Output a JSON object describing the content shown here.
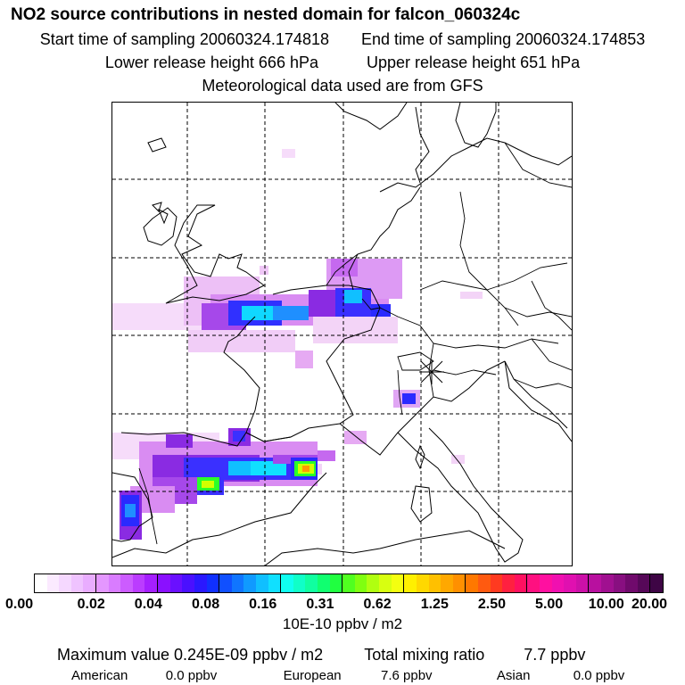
{
  "header": {
    "title": "NO2 source contributions in nested domain for falcon_060324c",
    "start_label": "Start time of sampling 20060324.174818",
    "end_label": "End time of sampling 20060324.174853",
    "lower_label": "Lower release height  666 hPa",
    "upper_label": "Upper release height  651 hPa",
    "met_label": "Meteorological data used are from GFS"
  },
  "map": {
    "marker_icon": "asterisk-release-marker",
    "colors": {
      "light_pink": "#f3d4f7",
      "pink": "#e8a6f3",
      "violet": "#c05cf0",
      "purple": "#8a2be2",
      "blue": "#2a2aff",
      "azure": "#1f8fff",
      "cyan": "#00ffe0",
      "green": "#2aff2a",
      "yellow_green": "#d2ff00",
      "orange": "#ff9a00"
    }
  },
  "colorbar": {
    "ticks": [
      "0.00",
      "0.02",
      "0.04",
      "0.08",
      "0.16",
      "0.31",
      "0.62",
      "1.25",
      "2.50",
      "5.00",
      "10.00",
      "20.00"
    ],
    "units": "10E-10 ppbv / m2",
    "colors": [
      "#ffffff",
      "#fbeaff",
      "#f5d8ff",
      "#efc3ff",
      "#e9adff",
      "#e497ff",
      "#d97cff",
      "#cc5cff",
      "#bb3cff",
      "#a51fff",
      "#8a10ff",
      "#6a10ff",
      "#4a10ff",
      "#2a18ff",
      "#1030ff",
      "#1050ff",
      "#1075ff",
      "#109aff",
      "#10bfff",
      "#10e0ff",
      "#10fff0",
      "#10ffc8",
      "#10ffa0",
      "#10ff70",
      "#20ff40",
      "#50ff20",
      "#80ff10",
      "#b0ff10",
      "#d8ff10",
      "#f4ff10",
      "#fff000",
      "#ffd800",
      "#ffc000",
      "#ffa800",
      "#ff9000",
      "#ff7800",
      "#ff5a10",
      "#ff3a20",
      "#ff2040",
      "#ff1060",
      "#ff1080",
      "#ff10a0",
      "#f010b0",
      "#e010b0",
      "#cc10a8",
      "#b8109f",
      "#a01090",
      "#880f80",
      "#700a6c",
      "#560858",
      "#3e0545"
    ]
  },
  "summary": {
    "max_label": "Maximum value  0.245E-09 ppbv / m2",
    "total_label": "Total mixing ratio",
    "total_value": "7.7 ppbv",
    "american_label": "American",
    "american_value": "0.0 ppbv",
    "european_label": "European",
    "european_value": "7.6 ppbv",
    "asian_label": "Asian",
    "asian_value": "0.0 ppbv"
  }
}
